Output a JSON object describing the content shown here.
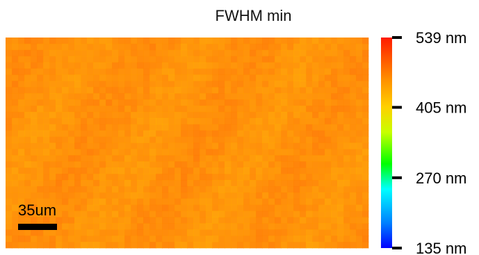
{
  "chart_data": {
    "type": "heatmap",
    "title": "FWHM min",
    "scale_bar_label": "35um",
    "colorbar": {
      "min": 135,
      "max": 539,
      "unit": "nm",
      "ticks": [
        {
          "value": 539,
          "label": "539 nm"
        },
        {
          "value": 405,
          "label": "405 nm"
        },
        {
          "value": 270,
          "label": "270 nm"
        },
        {
          "value": 135,
          "label": "135 nm"
        }
      ],
      "colormap": "jet"
    },
    "map": {
      "typical_value_range": [
        430,
        475
      ],
      "dominant_color": "#ff8c1a"
    }
  }
}
